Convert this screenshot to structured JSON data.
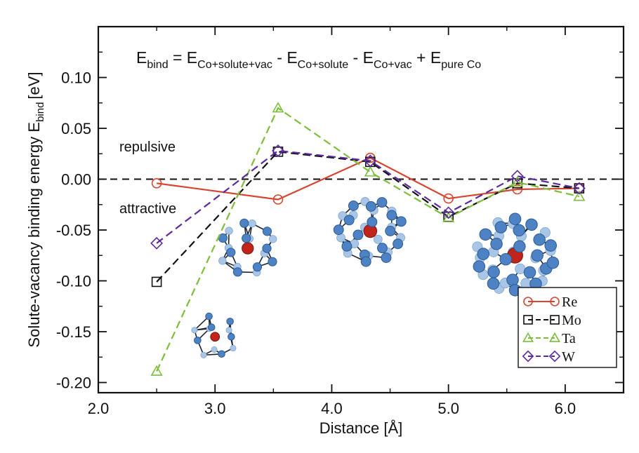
{
  "chart_data": {
    "type": "line",
    "xlabel": "Distance [Å]",
    "ylabel": "Solute-vacancy binding energy E",
    "ylabel_sub": "bind",
    "ylabel_unit": "[eV]",
    "xlim": [
      2.0,
      6.5
    ],
    "ylim": [
      -0.21,
      0.15
    ],
    "xticks": [
      2.0,
      3.0,
      4.0,
      5.0,
      6.0
    ],
    "xtick_labels": [
      "2.0",
      "3.0",
      "4.0",
      "5.0",
      "6.0"
    ],
    "yticks": [
      0.1,
      0.05,
      0.0,
      -0.05,
      -0.1,
      -0.15,
      -0.2
    ],
    "ytick_labels": [
      "0.10",
      "0.05",
      "0.00",
      "-0.05",
      "-0.10",
      "-0.15",
      "-0.20"
    ],
    "grid": false,
    "zero_line": true,
    "legend_position": "bottom-right",
    "series": [
      {
        "name": "Re",
        "color": "#d6452f",
        "marker": "circle",
        "dash": "solid",
        "x": [
          2.5,
          3.54,
          4.33,
          5.0,
          5.59,
          6.12
        ],
        "y": [
          -0.004,
          -0.02,
          0.021,
          -0.019,
          -0.01,
          -0.009
        ]
      },
      {
        "name": "Mo",
        "color": "#111111",
        "marker": "square",
        "dash": "dashed",
        "x": [
          2.5,
          3.54,
          4.33,
          5.0,
          5.59,
          6.12
        ],
        "y": [
          -0.101,
          0.027,
          0.017,
          -0.037,
          -0.004,
          -0.009
        ]
      },
      {
        "name": "Ta",
        "color": "#7cbf3b",
        "marker": "triangle",
        "dash": "dashed",
        "x": [
          2.5,
          3.54,
          4.33,
          5.0,
          5.59,
          6.12
        ],
        "y": [
          -0.189,
          0.07,
          0.007,
          -0.038,
          -0.003,
          -0.017
        ]
      },
      {
        "name": "W",
        "color": "#5b2a9c",
        "marker": "diamond",
        "dash": "dashed",
        "x": [
          2.5,
          3.54,
          4.33,
          5.0,
          5.59,
          6.12
        ],
        "y": [
          -0.063,
          0.028,
          0.018,
          -0.033,
          0.003,
          -0.009
        ]
      }
    ],
    "annotations": {
      "repulsive": "repulsive",
      "attractive": "attractive"
    },
    "formula": {
      "parts": [
        {
          "t": "E",
          "s": "bind"
        },
        {
          "t": " = E",
          "s": "Co+solute+vac"
        },
        {
          "t": " - E",
          "s": "Co+solute"
        },
        {
          "t": " - E",
          "s": "Co+vac"
        },
        {
          "t": " + E",
          "s": "pure Co"
        }
      ]
    },
    "clusters": [
      {
        "cx": 3.0,
        "cy": -0.155,
        "r": 0.022,
        "count": 12,
        "solute_color": "#c0241b",
        "atom_color": "#4d83c4"
      },
      {
        "cx": 3.28,
        "cy": -0.068,
        "r": 0.028,
        "count": 18,
        "solute_color": "#c0241b",
        "atom_color": "#4d83c4"
      },
      {
        "cx": 4.33,
        "cy": -0.051,
        "r": 0.032,
        "count": 30,
        "solute_color": "#c0241b",
        "atom_color": "#4d83c4"
      },
      {
        "cx": 5.57,
        "cy": -0.075,
        "r": 0.038,
        "count": 44,
        "solute_color": "#c0241b",
        "atom_color": "#4d83c4"
      }
    ]
  }
}
